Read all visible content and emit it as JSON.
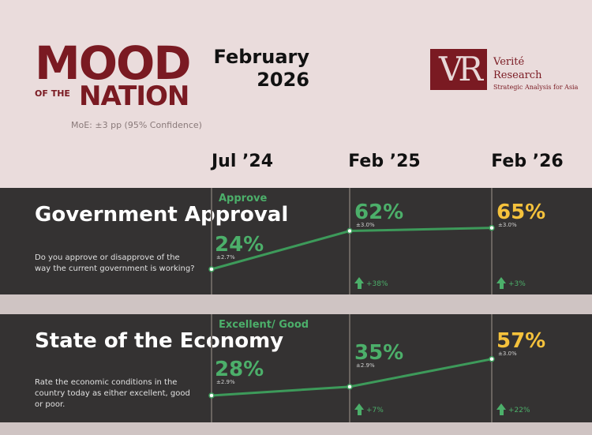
{
  "header": {
    "mood_word": "MOOD",
    "of_the": "OF THE",
    "nation_word": "NATION",
    "moe": "MoE: ±3 pp (95% Confidence)",
    "date_month": "February",
    "date_year": "2026",
    "publisher_monogram": "VR",
    "publisher_line1": "Verité",
    "publisher_line2": "Research",
    "publisher_tagline": "Strategic Analysis for Asia",
    "brand_color": "#7a1a22"
  },
  "columns": [
    "Jul ’24",
    "Feb ’25",
    "Feb ’26"
  ],
  "colors": {
    "line": "#3d9a5a",
    "value": "#4caf6a",
    "latest": "#f5c23c",
    "panel": "#343232"
  },
  "chart_data": [
    {
      "type": "line",
      "title": "Government Approval",
      "question": "Do you approve or disapprove of the way the current government is working?",
      "metric_label": "Approve",
      "categories": [
        "Jul ’24",
        "Feb ’25",
        "Feb ’26"
      ],
      "values": [
        24,
        62,
        65
      ],
      "value_labels": [
        "24%",
        "62%",
        "65%"
      ],
      "moe_labels": [
        "±2.7%",
        "±3.0%",
        "±3.0%"
      ],
      "changes": [
        null,
        "+38%",
        "+3%"
      ]
    },
    {
      "type": "line",
      "title": "State of the Economy",
      "question": "Rate the economic conditions in the country today as either excellent, good or poor.",
      "metric_label": "Excellent/ Good",
      "categories": [
        "Jul ’24",
        "Feb ’25",
        "Feb ’26"
      ],
      "values": [
        28,
        35,
        57
      ],
      "value_labels": [
        "28%",
        "35%",
        "57%"
      ],
      "moe_labels": [
        "±2.9%",
        "±2.9%",
        "±3.0%"
      ],
      "changes": [
        null,
        "+7%",
        "+22%"
      ]
    }
  ]
}
